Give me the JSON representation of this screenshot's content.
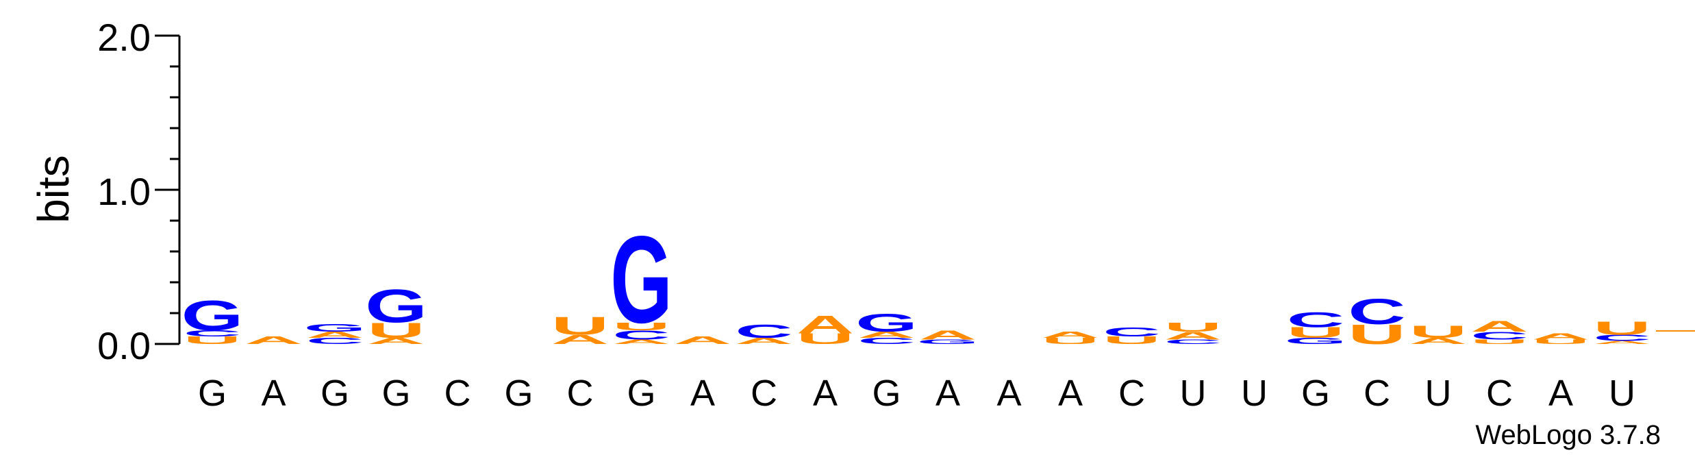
{
  "chart_data": {
    "type": "sequence-logo",
    "ylabel": "bits",
    "ylim": [
      0,
      2.0
    ],
    "yticks": [
      {
        "value": 0.0,
        "label": "0.0"
      },
      {
        "value": 1.0,
        "label": "1.0"
      },
      {
        "value": 2.0,
        "label": "2.0"
      }
    ],
    "minor_ytick_step": 0.2,
    "colors": {
      "G": "#0000ff",
      "C": "#0000ff",
      "A": "#ff8c00",
      "U": "#ff8c00"
    },
    "positions": [
      {
        "label": "G",
        "stack": [
          {
            "b": "U",
            "h": 0.05
          },
          {
            "b": "C",
            "h": 0.04
          },
          {
            "b": "G",
            "h": 0.2
          }
        ]
      },
      {
        "label": "A",
        "stack": [
          {
            "b": "A",
            "h": 0.05
          }
        ]
      },
      {
        "label": "G",
        "stack": [
          {
            "b": "C",
            "h": 0.04
          },
          {
            "b": "A",
            "h": 0.04
          },
          {
            "b": "G",
            "h": 0.05
          }
        ]
      },
      {
        "label": "G",
        "stack": [
          {
            "b": "A",
            "h": 0.04
          },
          {
            "b": "U",
            "h": 0.1
          },
          {
            "b": "G",
            "h": 0.22
          }
        ]
      },
      {
        "label": "C",
        "stack": []
      },
      {
        "label": "G",
        "stack": []
      },
      {
        "label": "C",
        "stack": [
          {
            "b": "A",
            "h": 0.06
          },
          {
            "b": "U",
            "h": 0.12
          }
        ]
      },
      {
        "label": "G",
        "stack": [
          {
            "b": "A",
            "h": 0.03
          },
          {
            "b": "C",
            "h": 0.06
          },
          {
            "b": "U",
            "h": 0.05
          },
          {
            "b": "G",
            "h": 0.58
          }
        ]
      },
      {
        "label": "A",
        "stack": [
          {
            "b": "A",
            "h": 0.05
          }
        ]
      },
      {
        "label": "C",
        "stack": [
          {
            "b": "A",
            "h": 0.04
          },
          {
            "b": "C",
            "h": 0.09
          }
        ]
      },
      {
        "label": "A",
        "stack": [
          {
            "b": "U",
            "h": 0.07
          },
          {
            "b": "A",
            "h": 0.12
          }
        ]
      },
      {
        "label": "G",
        "stack": [
          {
            "b": "C",
            "h": 0.04
          },
          {
            "b": "A",
            "h": 0.04
          },
          {
            "b": "G",
            "h": 0.12
          }
        ]
      },
      {
        "label": "A",
        "stack": [
          {
            "b": "G",
            "h": 0.03
          },
          {
            "b": "A",
            "h": 0.06
          }
        ]
      },
      {
        "label": "A",
        "stack": []
      },
      {
        "label": "A",
        "stack": [
          {
            "b": "U",
            "h": 0.04
          },
          {
            "b": "A",
            "h": 0.04
          }
        ]
      },
      {
        "label": "C",
        "stack": [
          {
            "b": "U",
            "h": 0.05
          },
          {
            "b": "C",
            "h": 0.06
          }
        ]
      },
      {
        "label": "U",
        "stack": [
          {
            "b": "C",
            "h": 0.03
          },
          {
            "b": "A",
            "h": 0.05
          },
          {
            "b": "U",
            "h": 0.06
          }
        ]
      },
      {
        "label": "U",
        "stack": []
      },
      {
        "label": "G",
        "stack": [
          {
            "b": "G",
            "h": 0.04
          },
          {
            "b": "U",
            "h": 0.07
          },
          {
            "b": "C",
            "h": 0.1
          }
        ]
      },
      {
        "label": "C",
        "stack": [
          {
            "b": "U",
            "h": 0.13
          },
          {
            "b": "C",
            "h": 0.17
          }
        ]
      },
      {
        "label": "U",
        "stack": [
          {
            "b": "A",
            "h": 0.04
          },
          {
            "b": "U",
            "h": 0.08
          }
        ]
      },
      {
        "label": "C",
        "stack": [
          {
            "b": "U",
            "h": 0.03
          },
          {
            "b": "C",
            "h": 0.05
          },
          {
            "b": "A",
            "h": 0.07
          }
        ]
      },
      {
        "label": "A",
        "stack": [
          {
            "b": "U",
            "h": 0.03
          },
          {
            "b": "A",
            "h": 0.04
          }
        ]
      },
      {
        "label": "U",
        "stack": [
          {
            "b": "A",
            "h": 0.02
          },
          {
            "b": "C",
            "h": 0.04
          },
          {
            "b": "U",
            "h": 0.09
          }
        ]
      }
    ],
    "footer": "WebLogo 3.7.8"
  }
}
